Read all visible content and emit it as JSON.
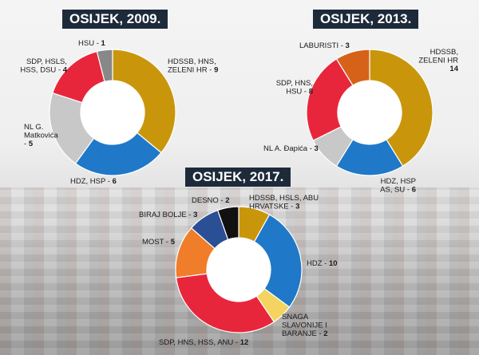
{
  "chart_data": [
    {
      "type": "donut",
      "title": "OSIJEK, 2009.",
      "slices": [
        {
          "label": "HDSSB, HNS, ZELENI HR",
          "value": 9,
          "color": "#c9960b"
        },
        {
          "label": "HDZ, HSP",
          "value": 6,
          "color": "#1f78c8"
        },
        {
          "label": "NL G. Matkovića",
          "value": 5,
          "color": "#c8c8c8"
        },
        {
          "label": "SDP, HSLS, HSS, DSU",
          "value": 4,
          "color": "#e8263b"
        },
        {
          "label": "HSU",
          "value": 1,
          "color": "#888888"
        }
      ]
    },
    {
      "type": "donut",
      "title": "OSIJEK, 2013.",
      "slices": [
        {
          "label": "HDSSB, ZELENI HR",
          "value": 14,
          "color": "#c9960b"
        },
        {
          "label": "HDZ, HSP AS, SU",
          "value": 6,
          "color": "#1f78c8"
        },
        {
          "label": "NL A. Đapića",
          "value": 3,
          "color": "#c8c8c8"
        },
        {
          "label": "SDP, HNS, HSU",
          "value": 8,
          "color": "#e8263b"
        },
        {
          "label": "LABURISTI",
          "value": 3,
          "color": "#d6621a"
        }
      ]
    },
    {
      "type": "donut",
      "title": "OSIJEK, 2017.",
      "slices": [
        {
          "label": "HDSSB, HSLS, ABU HRVATSKE",
          "value": 3,
          "color": "#c9960b"
        },
        {
          "label": "HDZ",
          "value": 10,
          "color": "#1f78c8"
        },
        {
          "label": "SNAGA SLAVONIJE I BARANJE",
          "value": 2,
          "color": "#f4d35e"
        },
        {
          "label": "SDP, HNS, HSS, ANU",
          "value": 12,
          "color": "#e8263b"
        },
        {
          "label": "MOST",
          "value": 5,
          "color": "#ef7d2a"
        },
        {
          "label": "BIRAJ BOLJE",
          "value": 3,
          "color": "#2b4f94"
        },
        {
          "label": "DESNO",
          "value": 2,
          "color": "#111111"
        }
      ]
    }
  ]
}
